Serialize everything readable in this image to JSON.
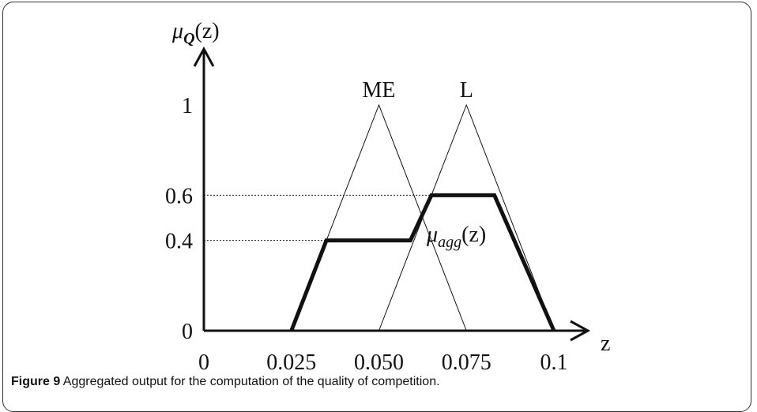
{
  "chart_data": {
    "type": "line",
    "ylabel_main": "μ",
    "ylabel_sub": "Q",
    "ylabel_arg": "(z)",
    "xlabel": "z",
    "xlim": [
      0,
      0.1
    ],
    "ylim": [
      0,
      1
    ],
    "x_ticks": [
      0,
      0.025,
      0.05,
      0.075,
      0.1
    ],
    "x_tick_labels": [
      "0",
      "0.025",
      "0.050",
      "0.075",
      "0.1"
    ],
    "y_ticks": [
      0,
      0.4,
      0.6,
      1
    ],
    "y_tick_labels": [
      "0",
      "0.4",
      "0.6",
      "1"
    ],
    "series": [
      {
        "name": "ME",
        "style": "thin",
        "x": [
          0.025,
          0.05,
          0.075
        ],
        "y": [
          0,
          1,
          0
        ]
      },
      {
        "name": "L",
        "style": "thin",
        "x": [
          0.05,
          0.075,
          0.1
        ],
        "y": [
          0,
          1,
          0
        ]
      },
      {
        "name": "μ_agg(z)",
        "style": "thick",
        "x": [
          0.025,
          0.035,
          0.059,
          0.065,
          0.083,
          0.1
        ],
        "y": [
          0,
          0.4,
          0.4,
          0.6,
          0.6,
          0
        ]
      }
    ],
    "aggregate_label": {
      "main": "μ",
      "sub": "agg",
      "arg": "(z)"
    },
    "reference_lines": [
      0.4,
      0.6
    ],
    "grid": false
  },
  "caption": {
    "label": "Figure 9",
    "text": " Aggregated output for the computation of the quality of competition."
  }
}
